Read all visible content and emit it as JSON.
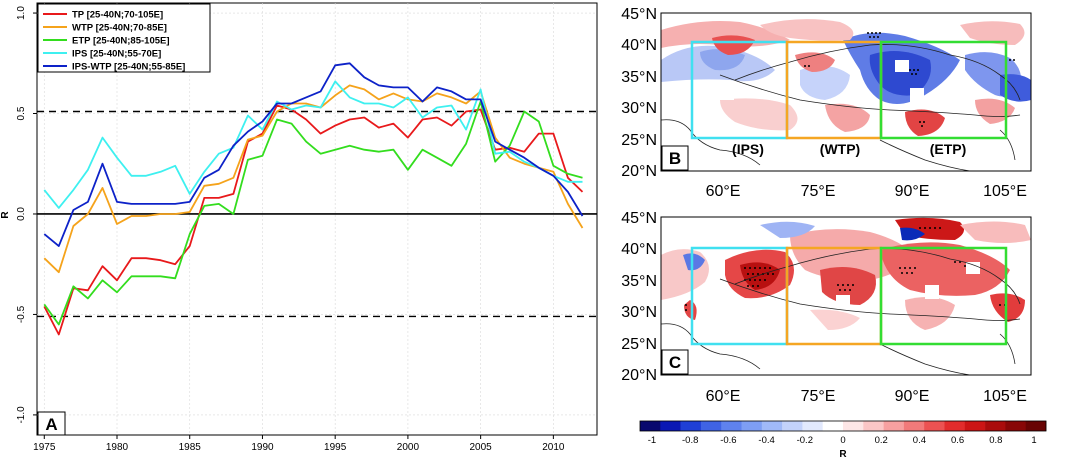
{
  "chart_data": [
    {
      "type": "line",
      "panel": "A",
      "ylabel": "R",
      "xlim": [
        1974.5,
        2013
      ],
      "ylim": [
        -1.1,
        1.05
      ],
      "xticks": [
        1975,
        1980,
        1985,
        1990,
        1995,
        2000,
        2005,
        2010
      ],
      "yticks": [
        -1.0,
        -0.5,
        0.0,
        0.5,
        1.0
      ],
      "ytick_labels": [
        "-1.0",
        "-0.5",
        "0.0",
        "0.5",
        "1.0"
      ],
      "significance_levels": [
        0.51,
        -0.51
      ],
      "zero_line": 0.0,
      "grid": true,
      "legend_position": "top-left",
      "x": [
        1975,
        1976,
        1977,
        1978,
        1979,
        1980,
        1981,
        1982,
        1983,
        1984,
        1985,
        1986,
        1987,
        1988,
        1989,
        1990,
        1991,
        1992,
        1993,
        1994,
        1995,
        1996,
        1997,
        1998,
        1999,
        2000,
        2001,
        2002,
        2003,
        2004,
        2005,
        2006,
        2007,
        2008,
        2009,
        2010,
        2011,
        2012
      ],
      "series": [
        {
          "name": "TP [25-40N;70-105E]",
          "color": "#e8191b",
          "values": [
            -0.46,
            -0.6,
            -0.37,
            -0.38,
            -0.26,
            -0.33,
            -0.22,
            -0.22,
            -0.23,
            -0.25,
            -0.16,
            0.08,
            0.08,
            0.1,
            0.36,
            0.4,
            0.54,
            0.52,
            0.47,
            0.4,
            0.44,
            0.47,
            0.48,
            0.43,
            0.45,
            0.38,
            0.47,
            0.48,
            0.44,
            0.51,
            0.52,
            0.32,
            0.33,
            0.31,
            0.4,
            0.4,
            0.18,
            0.11
          ]
        },
        {
          "name": "WTP [25-40N;70-85E]",
          "color": "#f5a31b",
          "values": [
            -0.22,
            -0.29,
            -0.06,
            0.0,
            0.13,
            -0.05,
            -0.01,
            -0.01,
            0.0,
            0.0,
            0.01,
            0.14,
            0.15,
            0.18,
            0.37,
            0.39,
            0.51,
            0.55,
            0.55,
            0.53,
            0.59,
            0.64,
            0.62,
            0.57,
            0.6,
            0.57,
            0.56,
            0.6,
            0.58,
            0.55,
            0.61,
            0.38,
            0.28,
            0.25,
            0.23,
            0.21,
            0.05,
            -0.07
          ]
        },
        {
          "name": "ETP [25-40N;85-105E]",
          "color": "#33dd1e",
          "values": [
            -0.45,
            -0.55,
            -0.36,
            -0.42,
            -0.33,
            -0.39,
            -0.31,
            -0.31,
            -0.31,
            -0.32,
            -0.1,
            0.04,
            0.05,
            0.0,
            0.27,
            0.29,
            0.47,
            0.45,
            0.36,
            0.3,
            0.32,
            0.34,
            0.32,
            0.31,
            0.32,
            0.22,
            0.32,
            0.28,
            0.24,
            0.35,
            0.56,
            0.26,
            0.34,
            0.51,
            0.46,
            0.24,
            0.2,
            0.18
          ]
        },
        {
          "name": "IPS [25-40N;55-70E]",
          "color": "#3ef0f0",
          "values": [
            0.12,
            0.03,
            0.12,
            0.22,
            0.38,
            0.28,
            0.19,
            0.19,
            0.21,
            0.24,
            0.1,
            0.21,
            0.3,
            0.33,
            0.49,
            0.42,
            0.56,
            0.52,
            0.54,
            0.53,
            0.66,
            0.58,
            0.55,
            0.55,
            0.53,
            0.58,
            0.48,
            0.53,
            0.54,
            0.42,
            0.62,
            0.3,
            0.31,
            0.26,
            0.23,
            0.19,
            0.16,
            0.16
          ]
        },
        {
          "name": "IPS-WTP [25-40N;55-85E]",
          "color": "#0d22c8",
          "values": [
            -0.1,
            -0.16,
            0.02,
            0.06,
            0.25,
            0.06,
            0.05,
            0.05,
            0.05,
            0.05,
            0.06,
            0.18,
            0.22,
            0.34,
            0.41,
            0.46,
            0.55,
            0.55,
            0.58,
            0.61,
            0.74,
            0.75,
            0.68,
            0.64,
            0.63,
            0.63,
            0.56,
            0.63,
            0.61,
            0.57,
            0.57,
            0.36,
            0.32,
            0.28,
            0.23,
            0.19,
            0.11,
            -0.01
          ]
        }
      ]
    },
    {
      "type": "heatmap",
      "panel": "B",
      "x_tick_labels": [
        "60°E",
        "75°E",
        "90°E",
        "105°E"
      ],
      "y_tick_labels": [
        "45°N",
        "40°N",
        "35°N",
        "30°N",
        "25°N",
        "20°N"
      ],
      "regions": [
        {
          "name": "(IPS)",
          "color": "#40e0f0"
        },
        {
          "name": "(WTP)",
          "color": "#f5a623"
        },
        {
          "name": "(ETP)",
          "color": "#33dd33"
        }
      ]
    },
    {
      "type": "heatmap",
      "panel": "C",
      "x_tick_labels": [
        "60°E",
        "75°E",
        "90°E",
        "105°E"
      ],
      "y_tick_labels": [
        "45°N",
        "40°N",
        "35°N",
        "30°N",
        "25°N",
        "20°N"
      ]
    },
    {
      "type": "colorbar",
      "label": "R",
      "tick_labels": [
        "-1",
        "-0.8",
        "-0.6",
        "-0.4",
        "-0.2",
        "0",
        "0.2",
        "0.4",
        "0.6",
        "0.8",
        "1"
      ],
      "colors": [
        "#08086e",
        "#0a18b4",
        "#1f3fd6",
        "#3f63e4",
        "#5f82ee",
        "#7e9ef4",
        "#a0b9f8",
        "#c3d2fb",
        "#e2e9fd",
        "#ffffff",
        "#fde6e6",
        "#fbc6c6",
        "#f7a0a0",
        "#f27a7a",
        "#ec5252",
        "#e22c2c",
        "#cc1515",
        "#aa0c0c",
        "#880707",
        "#680404"
      ]
    }
  ],
  "panel_labels": {
    "a": "A",
    "b": "B",
    "c": "C"
  }
}
